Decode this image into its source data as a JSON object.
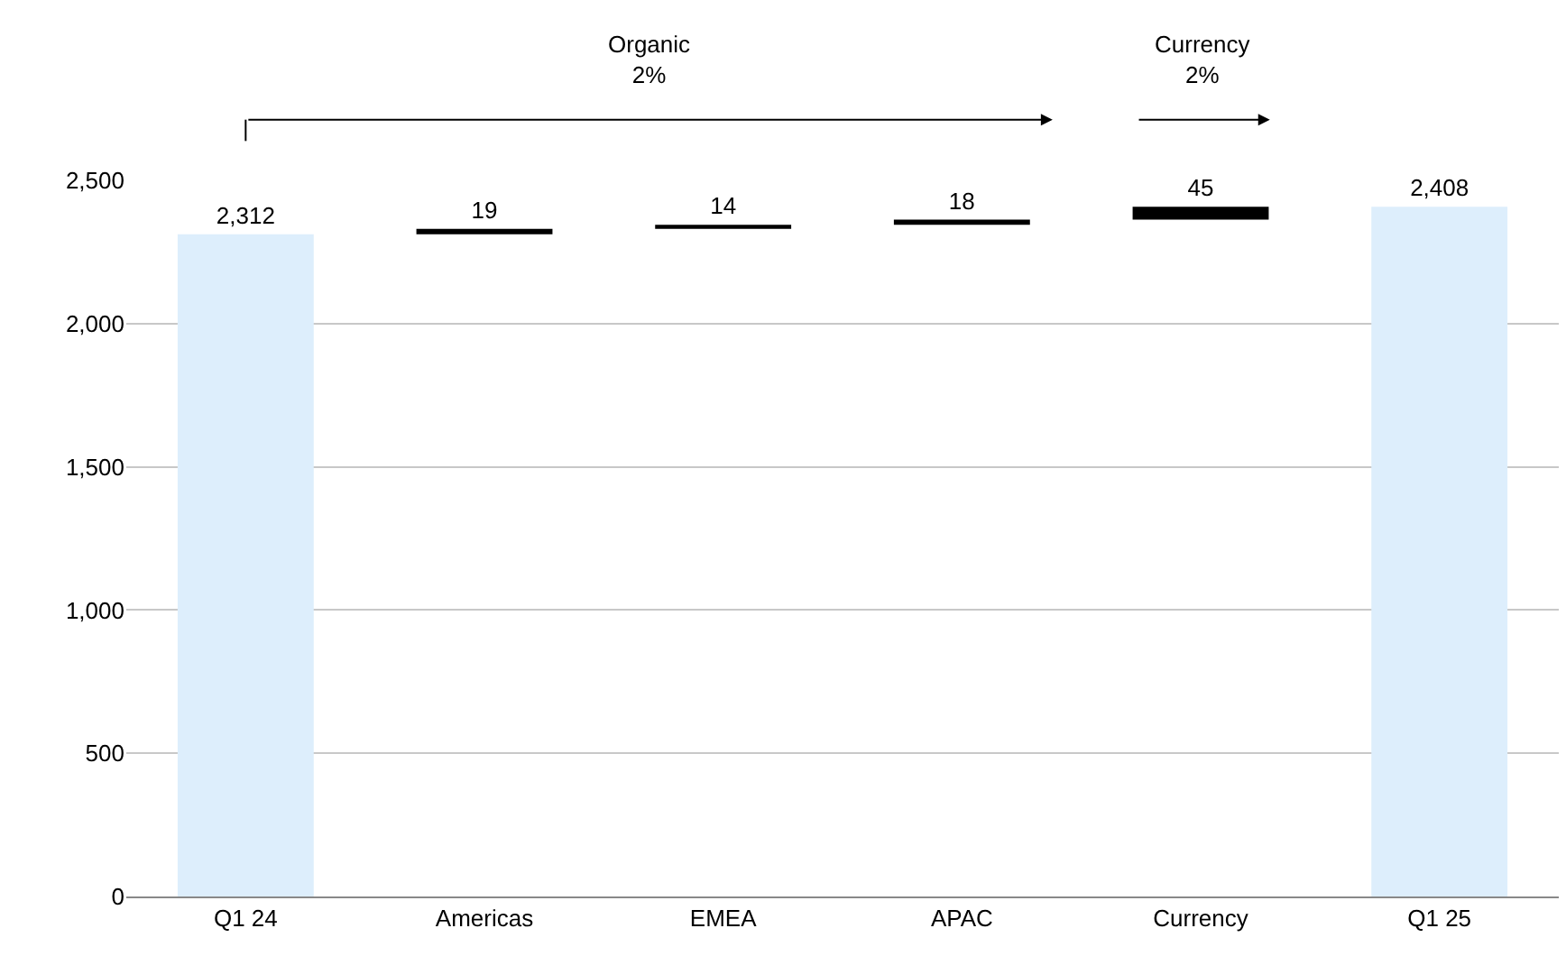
{
  "chart_data": {
    "type": "bar",
    "categories": [
      "Q1 24",
      "Americas",
      "EMEA",
      "APAC",
      "Currency",
      "Q1 25"
    ],
    "values": [
      2312,
      19,
      14,
      18,
      45,
      2408
    ],
    "base": [
      0,
      2312,
      2331,
      2345,
      2363,
      0
    ],
    "colors": [
      "#ddeefc",
      "#000000",
      "#000000",
      "#000000",
      "#000000",
      "#ddeefc"
    ],
    "ylim": [
      0,
      2500
    ],
    "yticks": [
      0,
      500,
      {
        "value": 1000,
        "label": "1,000"
      },
      {
        "value": 1500,
        "label": "1,500"
      },
      {
        "value": 2000,
        "label": "2,000"
      },
      {
        "value": 2500,
        "label": "2,500"
      }
    ],
    "grid": "y",
    "value_labels": [
      "2,312",
      "19",
      "14",
      "18",
      "45",
      "2,408"
    ],
    "annotations": [
      "Organic\n2%",
      "Currency\n2%"
    ]
  }
}
